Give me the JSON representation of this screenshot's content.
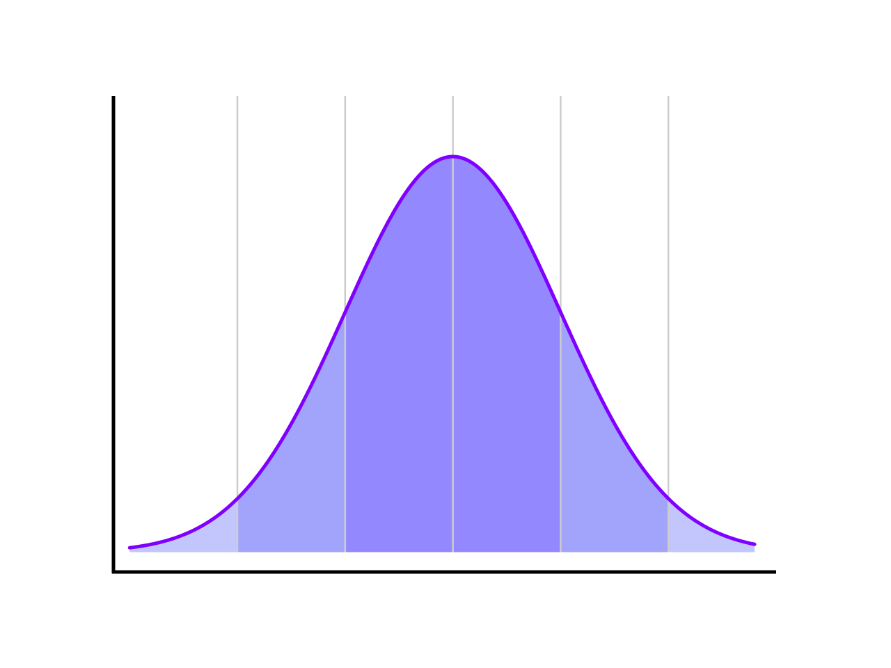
{
  "chart_data": {
    "type": "area",
    "distribution": "normal",
    "mean": 0,
    "std": 1,
    "xlim": [
      -3.15,
      3.0
    ],
    "ylim": [
      -0.02,
      0.46
    ],
    "curve_range": [
      -3.0,
      2.8
    ],
    "gridlines_x": [
      -2,
      -1,
      0,
      1,
      2
    ],
    "bands": [
      {
        "name": "",
        "from": -3.0,
        "to": -2,
        "color": "#c3c6fd"
      },
      {
        "name": "",
        "from": -2,
        "to": -1,
        "color": "#a2a4fc"
      },
      {
        "name": "",
        "from": -1,
        "to": 1,
        "color": "#9488fe"
      },
      {
        "name": "",
        "from": 1,
        "to": 2,
        "color": "#a2a4fc"
      },
      {
        "name": "",
        "from": 2,
        "to": 2.8,
        "color": "#c3c6fd"
      }
    ],
    "line_color": "#8000ff",
    "grid_color": "#cccccc",
    "axis_color": "#000000",
    "grid": true,
    "title": "",
    "xlabel": "",
    "ylabel": ""
  }
}
